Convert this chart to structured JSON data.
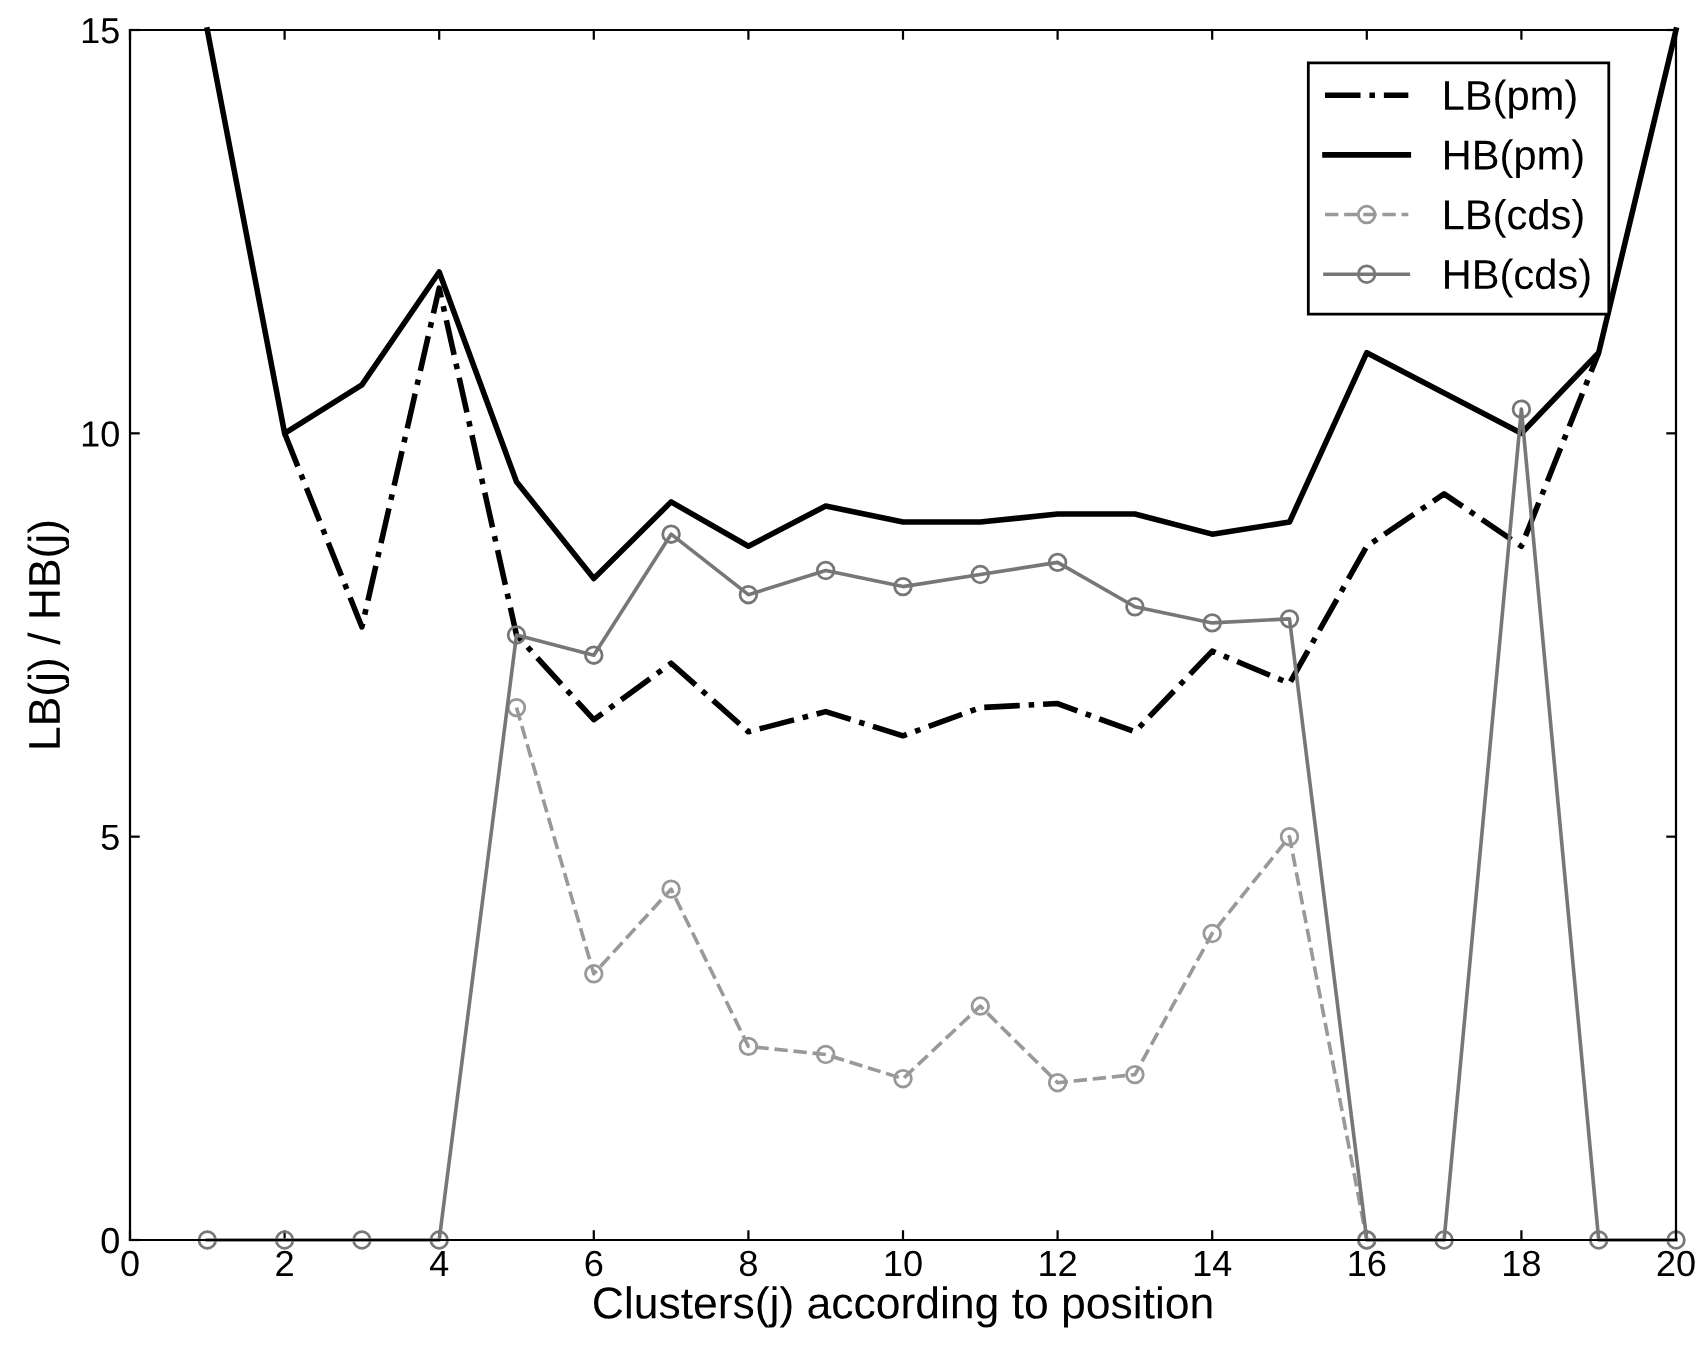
{
  "chart_data": {
    "type": "line",
    "xlabel": "Clusters(j) according to position",
    "ylabel": "LB(j) / HB(j)",
    "x": [
      1,
      2,
      3,
      4,
      5,
      6,
      7,
      8,
      9,
      10,
      11,
      12,
      13,
      14,
      15,
      16,
      17,
      18,
      19,
      20
    ],
    "series": [
      {
        "name": "LB(pm)",
        "color": "#000000",
        "line_style": "dashdot",
        "marker": "none",
        "values": [
          null,
          10.0,
          7.6,
          11.8,
          7.5,
          6.45,
          7.15,
          6.3,
          6.55,
          6.25,
          6.6,
          6.65,
          6.3,
          7.3,
          6.9,
          8.6,
          9.25,
          8.6,
          11.0,
          null
        ]
      },
      {
        "name": "HB(pm)",
        "color": "#000000",
        "line_style": "solid",
        "marker": "none",
        "values": [
          15,
          10.0,
          10.6,
          12.0,
          9.4,
          8.2,
          9.15,
          8.6,
          9.1,
          8.9,
          8.9,
          9.0,
          9.0,
          8.75,
          8.9,
          11.0,
          10.5,
          10.0,
          11.0,
          15
        ]
      },
      {
        "name": "LB(cds)",
        "color": "#999999",
        "line_style": "dashed",
        "marker": "circle",
        "values": [
          null,
          null,
          null,
          null,
          6.6,
          3.3,
          4.35,
          2.4,
          2.3,
          2.0,
          2.9,
          1.95,
          2.05,
          3.8,
          5.0,
          0,
          null,
          null,
          null,
          null
        ]
      },
      {
        "name": "HB(cds)",
        "color": "#777777",
        "line_style": "solid",
        "marker": "circle",
        "values": [
          0,
          0,
          0,
          0,
          7.5,
          7.25,
          8.75,
          8.0,
          8.3,
          8.1,
          8.25,
          8.4,
          7.85,
          7.65,
          7.7,
          0,
          0,
          10.3,
          0,
          0
        ]
      }
    ],
    "xlim": [
      0,
      20
    ],
    "xticks": [
      0,
      2,
      4,
      6,
      8,
      10,
      12,
      14,
      16,
      18,
      20
    ],
    "ylim": [
      0,
      15
    ],
    "yticks": [
      0,
      5,
      10,
      15
    ],
    "grid": false,
    "legend": "top right"
  }
}
